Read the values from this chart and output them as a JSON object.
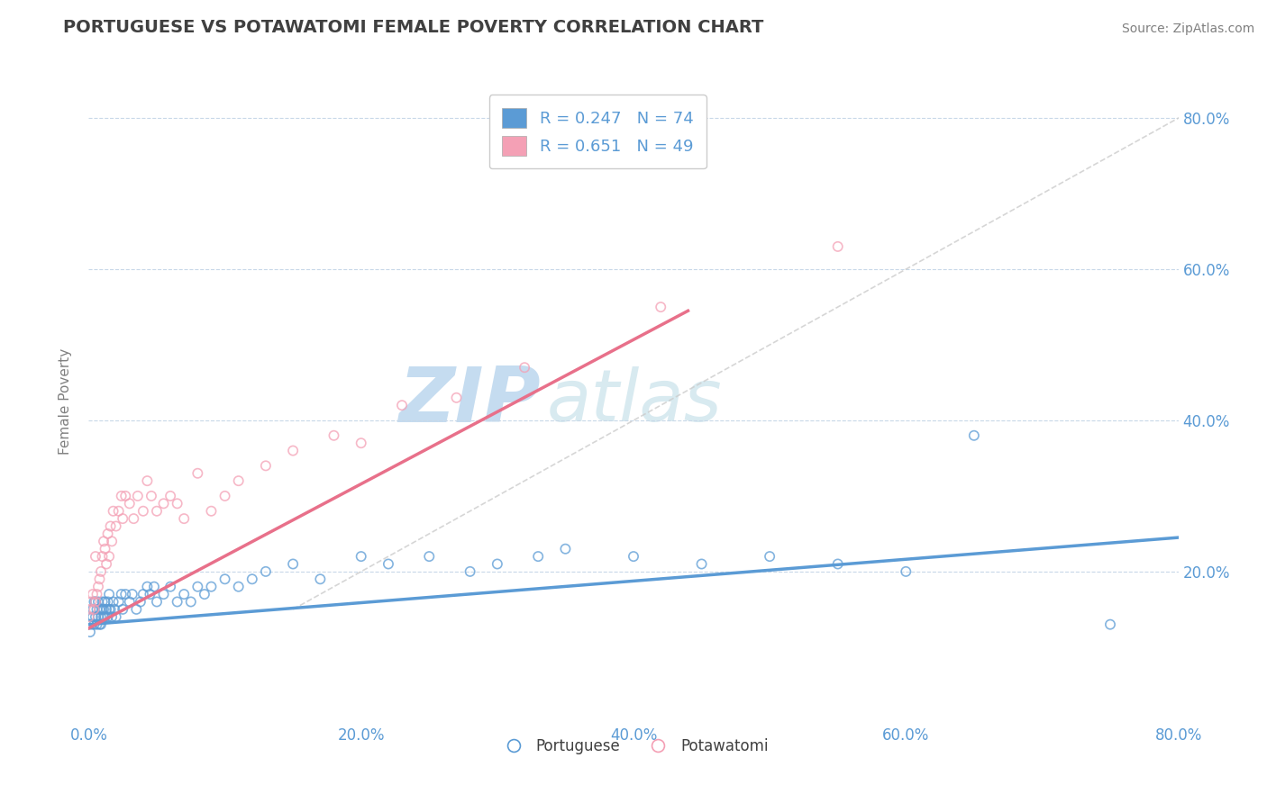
{
  "title": "PORTUGUESE VS POTAWATOMI FEMALE POVERTY CORRELATION CHART",
  "source": "Source: ZipAtlas.com",
  "ylabel": "Female Poverty",
  "x_ticks": [
    0.0,
    0.2,
    0.4,
    0.6,
    0.8
  ],
  "x_tick_labels": [
    "0.0%",
    "20.0%",
    "40.0%",
    "60.0%",
    "80.0%"
  ],
  "xlim": [
    0.0,
    0.8
  ],
  "ylim": [
    0.0,
    0.85
  ],
  "portuguese_R": 0.247,
  "portuguese_N": 74,
  "potawatomi_R": 0.651,
  "potawatomi_N": 49,
  "blue_color": "#5B9BD5",
  "pink_color": "#F4A0B5",
  "title_color": "#404040",
  "axis_label_color": "#5B9BD5",
  "background_color": "#FFFFFF",
  "watermark_color": "#D8EAF7",
  "blue_line_start_y": 0.13,
  "blue_line_end_y": 0.245,
  "pink_line_start_y": 0.125,
  "pink_line_end_y": 0.545,
  "pink_line_end_x": 0.44,
  "portuguese_x": [
    0.0,
    0.001,
    0.002,
    0.003,
    0.003,
    0.004,
    0.004,
    0.005,
    0.005,
    0.006,
    0.006,
    0.007,
    0.007,
    0.008,
    0.008,
    0.009,
    0.009,
    0.01,
    0.01,
    0.011,
    0.011,
    0.012,
    0.012,
    0.013,
    0.014,
    0.014,
    0.015,
    0.015,
    0.016,
    0.017,
    0.018,
    0.019,
    0.02,
    0.022,
    0.024,
    0.025,
    0.027,
    0.03,
    0.032,
    0.035,
    0.038,
    0.04,
    0.043,
    0.045,
    0.048,
    0.05,
    0.055,
    0.06,
    0.065,
    0.07,
    0.075,
    0.08,
    0.085,
    0.09,
    0.1,
    0.11,
    0.12,
    0.13,
    0.15,
    0.17,
    0.2,
    0.22,
    0.25,
    0.28,
    0.3,
    0.33,
    0.35,
    0.4,
    0.45,
    0.5,
    0.55,
    0.6,
    0.65,
    0.75
  ],
  "portuguese_y": [
    0.13,
    0.12,
    0.13,
    0.14,
    0.15,
    0.13,
    0.16,
    0.14,
    0.16,
    0.13,
    0.15,
    0.14,
    0.16,
    0.13,
    0.15,
    0.14,
    0.13,
    0.15,
    0.16,
    0.14,
    0.15,
    0.14,
    0.16,
    0.15,
    0.14,
    0.16,
    0.15,
    0.17,
    0.15,
    0.14,
    0.16,
    0.15,
    0.14,
    0.16,
    0.17,
    0.15,
    0.17,
    0.16,
    0.17,
    0.15,
    0.16,
    0.17,
    0.18,
    0.17,
    0.18,
    0.16,
    0.17,
    0.18,
    0.16,
    0.17,
    0.16,
    0.18,
    0.17,
    0.18,
    0.19,
    0.18,
    0.19,
    0.2,
    0.21,
    0.19,
    0.22,
    0.21,
    0.22,
    0.2,
    0.21,
    0.22,
    0.23,
    0.22,
    0.21,
    0.22,
    0.21,
    0.2,
    0.38,
    0.13
  ],
  "potawatomi_x": [
    0.0,
    0.001,
    0.002,
    0.003,
    0.004,
    0.005,
    0.005,
    0.006,
    0.007,
    0.008,
    0.009,
    0.01,
    0.011,
    0.012,
    0.013,
    0.014,
    0.015,
    0.016,
    0.017,
    0.018,
    0.02,
    0.022,
    0.024,
    0.025,
    0.027,
    0.03,
    0.033,
    0.036,
    0.04,
    0.043,
    0.046,
    0.05,
    0.055,
    0.06,
    0.065,
    0.07,
    0.08,
    0.09,
    0.1,
    0.11,
    0.13,
    0.15,
    0.18,
    0.2,
    0.23,
    0.27,
    0.32,
    0.42,
    0.55
  ],
  "potawatomi_y": [
    0.14,
    0.15,
    0.16,
    0.17,
    0.15,
    0.16,
    0.22,
    0.17,
    0.18,
    0.19,
    0.2,
    0.22,
    0.24,
    0.23,
    0.21,
    0.25,
    0.22,
    0.26,
    0.24,
    0.28,
    0.26,
    0.28,
    0.3,
    0.27,
    0.3,
    0.29,
    0.27,
    0.3,
    0.28,
    0.32,
    0.3,
    0.28,
    0.29,
    0.3,
    0.29,
    0.27,
    0.33,
    0.28,
    0.3,
    0.32,
    0.34,
    0.36,
    0.38,
    0.37,
    0.42,
    0.43,
    0.47,
    0.55,
    0.63
  ]
}
